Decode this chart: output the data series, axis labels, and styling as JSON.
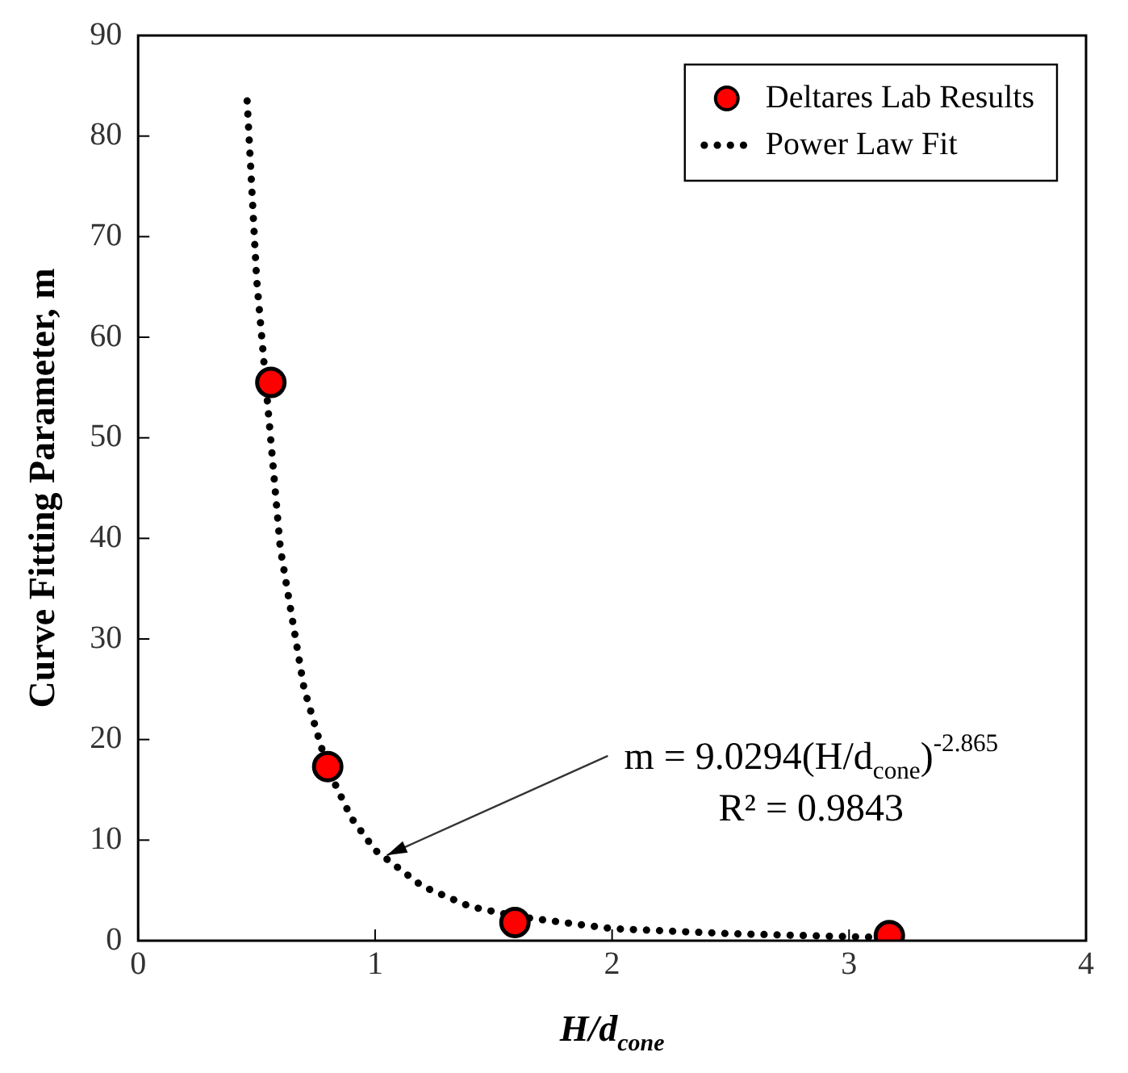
{
  "chart_data": {
    "type": "scatter",
    "xlabel": "H/d$_{cone}$",
    "ylabel": "Curve Fitting Parameter, m",
    "xlim": [
      0,
      4
    ],
    "xticks": [
      0,
      1,
      2,
      3,
      4
    ],
    "ylim": [
      0,
      90
    ],
    "yticks": [
      0,
      10,
      20,
      30,
      40,
      50,
      60,
      70,
      80,
      90
    ],
    "legend": "top right",
    "grid": false,
    "series": [
      {
        "name": "Deltares Lab Results",
        "marker": "circle",
        "color": "#ff0000",
        "x": [
          0.56,
          0.8,
          1.59,
          3.17
        ],
        "values": [
          55.5,
          17.3,
          1.8,
          0.5
        ]
      },
      {
        "name": "Power Law Fit",
        "type": "line",
        "marker": "none",
        "line_style": "dotted",
        "color": "#000000",
        "x": [
          0.46,
          0.5,
          0.6,
          0.7,
          0.8,
          0.9,
          1.0,
          1.2,
          1.4,
          1.6,
          2.0,
          2.5,
          3.0,
          3.2
        ],
        "values": [
          83.5,
          65.8,
          39.0,
          25.1,
          17.1,
          12.2,
          9.0,
          5.4,
          3.4,
          2.4,
          1.2,
          0.7,
          0.4,
          0.3
        ]
      }
    ],
    "annotations": [
      {
        "text": "m = 9.0294(H/d$_{cone}$)$^{-2.865}$",
        "x": 1.05,
        "y": 8.5
      },
      "R² = 0.9843"
    ]
  }
}
